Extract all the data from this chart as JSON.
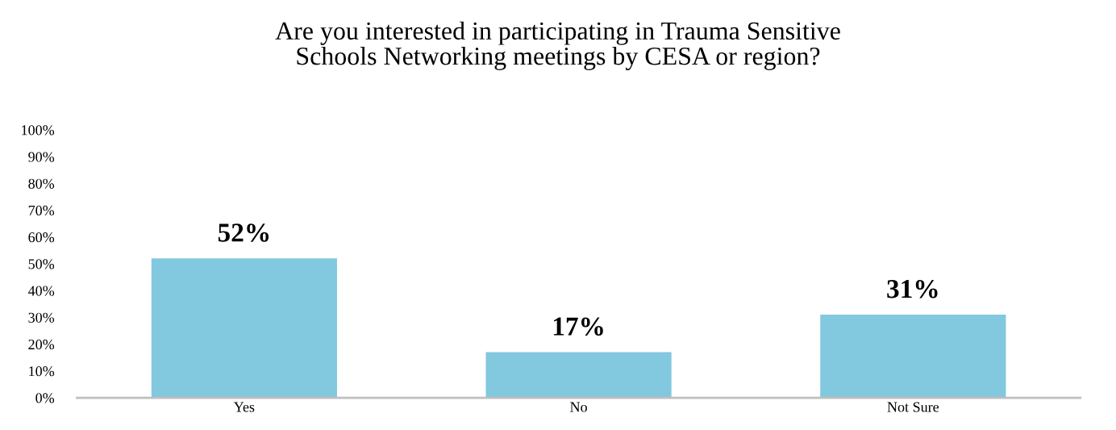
{
  "chart_data": {
    "type": "bar",
    "title": "Are you interested in participating in Trauma Sensitive\nSchools Networking meetings by CESA or region?",
    "categories": [
      "Yes",
      "No",
      "Not Sure"
    ],
    "values": [
      52,
      17,
      31
    ],
    "value_labels": [
      "52%",
      "17%",
      "31%"
    ],
    "color": "#82c8de",
    "ylim": [
      0,
      100
    ],
    "yticks": [
      {
        "value": 0,
        "label": "0%"
      },
      {
        "value": 10,
        "label": "10%"
      },
      {
        "value": 20,
        "label": "20%"
      },
      {
        "value": 30,
        "label": "30%"
      },
      {
        "value": 40,
        "label": "40%"
      },
      {
        "value": 50,
        "label": "50%"
      },
      {
        "value": 60,
        "label": "60%"
      },
      {
        "value": 70,
        "label": "70%"
      },
      {
        "value": 80,
        "label": "80%"
      },
      {
        "value": 90,
        "label": "90%"
      },
      {
        "value": 100,
        "label": "100%"
      }
    ],
    "grid": false
  }
}
